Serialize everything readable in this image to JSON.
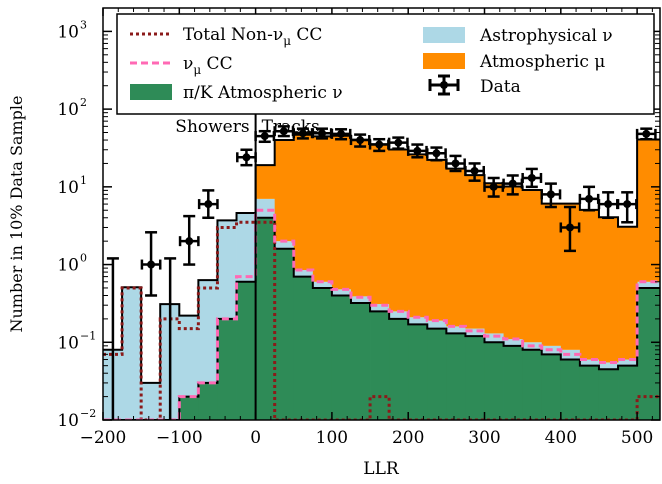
{
  "chart_data": {
    "type": "histogram",
    "xlabel": "LLR",
    "ylabel": "Number in 10% Data Sample",
    "xlim": [
      -200,
      530
    ],
    "ylim": [
      0.01,
      2000
    ],
    "y_scale": "log",
    "x_ticks": [
      -200,
      -100,
      0,
      100,
      200,
      300,
      400,
      500
    ],
    "x_tick_labels": [
      "−200",
      "−100",
      "0",
      "100",
      "200",
      "300",
      "400",
      "500"
    ],
    "y_ticks": [
      0.01,
      0.1,
      1,
      10,
      100,
      1000
    ],
    "y_tick_labels": [
      "10",
      "10",
      "10",
      "10",
      "10",
      "10"
    ],
    "y_tick_exponents": [
      "−2",
      "−1",
      "0",
      "1",
      "2",
      "3"
    ],
    "divider_x": 0,
    "region_labels": {
      "left": "Showers",
      "right": "Tracks"
    },
    "bin_edges": [
      -200,
      -175,
      -150,
      -125,
      -100,
      -75,
      -50,
      -25,
      0,
      25,
      50,
      75,
      100,
      125,
      150,
      175,
      200,
      225,
      250,
      275,
      300,
      325,
      350,
      375,
      400,
      425,
      450,
      475,
      500,
      530
    ],
    "stack": [
      {
        "name": "π/K Atmospheric ν",
        "color": "#2e8b57",
        "values": [
          0.01,
          0.01,
          0.01,
          0.01,
          0.02,
          0.03,
          0.2,
          0.6,
          4.0,
          1.6,
          0.7,
          0.5,
          0.4,
          0.32,
          0.25,
          0.2,
          0.17,
          0.15,
          0.13,
          0.12,
          0.1,
          0.09,
          0.08,
          0.07,
          0.06,
          0.05,
          0.045,
          0.05,
          0.5
        ]
      },
      {
        "name": "Astrophysical ν",
        "color": "#add8e6",
        "values": [
          0.07,
          0.5,
          0.02,
          0.3,
          0.2,
          0.6,
          3.5,
          4.0,
          3.0,
          0.4,
          0.15,
          0.1,
          0.08,
          0.07,
          0.06,
          0.05,
          0.04,
          0.04,
          0.03,
          0.03,
          0.03,
          0.02,
          0.02,
          0.02,
          0.02,
          0.01,
          0.01,
          0.01,
          0.1
        ]
      },
      {
        "name": "Atmospheric μ",
        "color": "#ff8c00",
        "values": [
          0,
          0,
          0,
          0,
          0,
          0,
          0,
          0,
          12,
          38,
          46,
          44,
          45,
          40,
          35,
          30,
          26,
          22,
          17,
          14,
          11,
          10,
          9,
          6,
          6,
          5,
          4,
          3,
          40
        ]
      }
    ],
    "lines": [
      {
        "name": "Total Non-ν",
        "name_sub": "μ",
        "name_rest": " CC",
        "color": "#8b1a1a",
        "dash": "3,3",
        "values": [
          0.07,
          0.5,
          0.01,
          0.2,
          0.15,
          0.5,
          3.0,
          3.5,
          3.5,
          0.01,
          0.01,
          0.01,
          0.01,
          0.01,
          0.02,
          0.01,
          0.01,
          0.01,
          0.01,
          0.01,
          0.01,
          0.01,
          0.01,
          0.01,
          0.01,
          0.01,
          0.01,
          0.01,
          0.02
        ]
      },
      {
        "name": "ν",
        "name_sub": "μ",
        "name_rest": " CC",
        "color": "#ff69b4",
        "dash": "7,4",
        "values": [
          0.01,
          0.01,
          0.01,
          0.01,
          0.02,
          0.03,
          0.2,
          0.7,
          5.0,
          2.0,
          0.85,
          0.6,
          0.48,
          0.38,
          0.3,
          0.25,
          0.21,
          0.19,
          0.16,
          0.14,
          0.12,
          0.11,
          0.09,
          0.08,
          0.07,
          0.06,
          0.055,
          0.06,
          0.6
        ]
      }
    ],
    "data": {
      "name": "Data",
      "points": [
        {
          "x": -187,
          "y": 0.01,
          "ylo": 0.01,
          "yhi": 1.2,
          "xerr": 12
        },
        {
          "x": -137,
          "y": 1.0,
          "ylo": 0.4,
          "yhi": 2.6,
          "xerr": 12
        },
        {
          "x": -112,
          "y": 0.01,
          "ylo": 0.01,
          "yhi": 1.2,
          "xerr": 12
        },
        {
          "x": -87,
          "y": 2.0,
          "ylo": 1.0,
          "yhi": 4.2,
          "xerr": 12
        },
        {
          "x": -62,
          "y": 6.0,
          "ylo": 4.0,
          "yhi": 9.0,
          "xerr": 12
        },
        {
          "x": -12,
          "y": 24.0,
          "ylo": 19.0,
          "yhi": 30.0,
          "xerr": 12
        },
        {
          "x": 12,
          "y": 45.0,
          "ylo": 38.0,
          "yhi": 52.0,
          "xerr": 12
        },
        {
          "x": 37,
          "y": 52.0,
          "ylo": 45.0,
          "yhi": 60.0,
          "xerr": 12
        },
        {
          "x": 62,
          "y": 49.0,
          "ylo": 42.0,
          "yhi": 56.0,
          "xerr": 12
        },
        {
          "x": 87,
          "y": 49.0,
          "ylo": 42.0,
          "yhi": 56.0,
          "xerr": 12
        },
        {
          "x": 112,
          "y": 48.0,
          "ylo": 41.0,
          "yhi": 55.0,
          "xerr": 12
        },
        {
          "x": 137,
          "y": 40.0,
          "ylo": 33.0,
          "yhi": 47.0,
          "xerr": 12
        },
        {
          "x": 162,
          "y": 35.0,
          "ylo": 29.0,
          "yhi": 41.0,
          "xerr": 12
        },
        {
          "x": 187,
          "y": 37.0,
          "ylo": 31.0,
          "yhi": 43.0,
          "xerr": 12
        },
        {
          "x": 212,
          "y": 29.0,
          "ylo": 24.0,
          "yhi": 35.0,
          "xerr": 12
        },
        {
          "x": 237,
          "y": 27.0,
          "ylo": 22.0,
          "yhi": 32.0,
          "xerr": 12
        },
        {
          "x": 262,
          "y": 20.0,
          "ylo": 16.0,
          "yhi": 25.0,
          "xerr": 12
        },
        {
          "x": 287,
          "y": 16.0,
          "ylo": 12.0,
          "yhi": 20.0,
          "xerr": 12
        },
        {
          "x": 312,
          "y": 10.0,
          "ylo": 7.5,
          "yhi": 13.0,
          "xerr": 12
        },
        {
          "x": 337,
          "y": 11.0,
          "ylo": 8.0,
          "yhi": 14.0,
          "xerr": 12
        },
        {
          "x": 362,
          "y": 13.0,
          "ylo": 10.0,
          "yhi": 17.0,
          "xerr": 12
        },
        {
          "x": 387,
          "y": 8.0,
          "ylo": 5.5,
          "yhi": 11.0,
          "xerr": 12
        },
        {
          "x": 412,
          "y": 3.0,
          "ylo": 1.5,
          "yhi": 5.5,
          "xerr": 12
        },
        {
          "x": 437,
          "y": 7.0,
          "ylo": 5.0,
          "yhi": 10.0,
          "xerr": 12
        },
        {
          "x": 462,
          "y": 6.0,
          "ylo": 4.0,
          "yhi": 8.5,
          "xerr": 12
        },
        {
          "x": 487,
          "y": 6.0,
          "ylo": 3.5,
          "yhi": 8.5,
          "xerr": 12
        },
        {
          "x": 512,
          "y": 48.0,
          "ylo": 41.0,
          "yhi": 56.0,
          "xerr": 12
        }
      ]
    },
    "legend": {
      "position": "top",
      "entries": [
        {
          "key": "total_non_numu_cc",
          "type": "line",
          "label": "Total Non-ν",
          "label_sub": "μ",
          "label_rest": " CC"
        },
        {
          "key": "numu_cc",
          "type": "line",
          "label": "ν",
          "label_sub": "μ",
          "label_rest": " CC"
        },
        {
          "key": "pik_atm_nu",
          "type": "patch",
          "label": "π/K Atmospheric ν"
        },
        {
          "key": "astro_nu",
          "type": "patch",
          "label": "Astrophysical ν"
        },
        {
          "key": "atm_mu",
          "type": "patch",
          "label": "Atmospheric μ"
        },
        {
          "key": "data",
          "type": "errorbar",
          "label": "Data"
        }
      ]
    }
  }
}
